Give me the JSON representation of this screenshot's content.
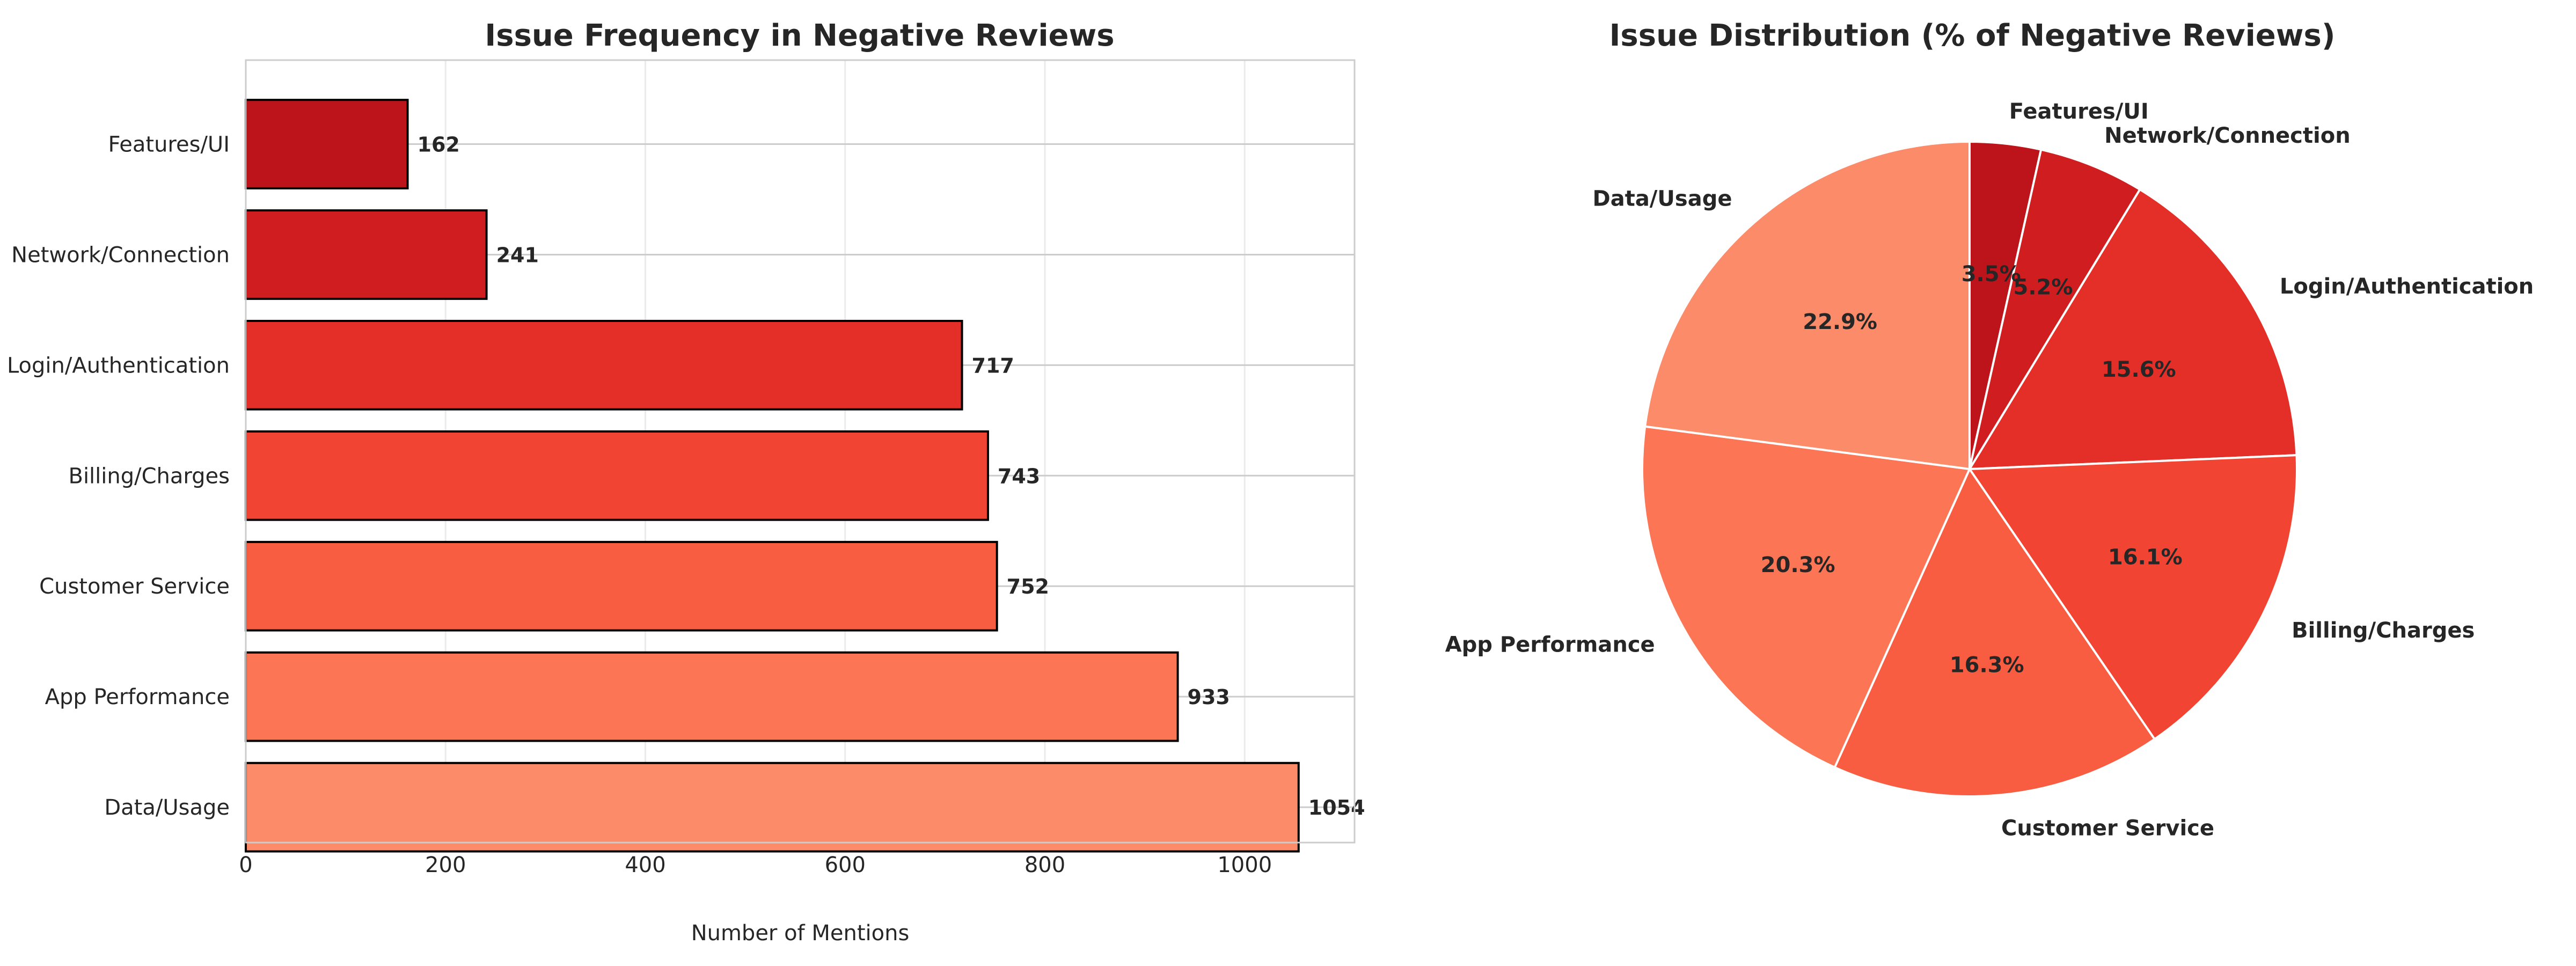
{
  "chart_data": [
    {
      "type": "bar",
      "orientation": "horizontal",
      "title": "Issue Frequency in Negative Reviews",
      "xlabel": "Number of Mentions",
      "ylabel": "",
      "xlim": [
        0,
        1110
      ],
      "xticks": [
        0,
        200,
        400,
        600,
        800,
        1000
      ],
      "grid": true,
      "categories": [
        "Features/UI",
        "Network/Connection",
        "Login/Authentication",
        "Billing/Charges",
        "Customer Service",
        "App Performance",
        "Data/Usage"
      ],
      "values": [
        162,
        241,
        717,
        743,
        752,
        933,
        1054
      ],
      "colors": [
        "#bc141a",
        "#d01d20",
        "#e32f27",
        "#f14432",
        "#f85d42",
        "#fc7656",
        "#fc8b6a"
      ],
      "data_labels": [
        "162",
        "241",
        "717",
        "743",
        "752",
        "933",
        "1054"
      ]
    },
    {
      "type": "pie",
      "title": "Issue Distribution (% of Negative Reviews)",
      "categories": [
        "Features/UI",
        "Network/Connection",
        "Login/Authentication",
        "Billing/Charges",
        "Customer Service",
        "App Performance",
        "Data/Usage"
      ],
      "values": [
        3.5,
        5.2,
        15.6,
        16.1,
        16.3,
        20.3,
        22.9
      ],
      "data_labels": [
        "3.5%",
        "5.2%",
        "15.6%",
        "16.1%",
        "16.3%",
        "20.3%",
        "22.9%"
      ],
      "colors": [
        "#bc141a",
        "#d01d20",
        "#e32f27",
        "#f14432",
        "#f85d42",
        "#fc7656",
        "#fc8b6a"
      ],
      "start_angle": 90,
      "direction": "clockwise"
    }
  ]
}
